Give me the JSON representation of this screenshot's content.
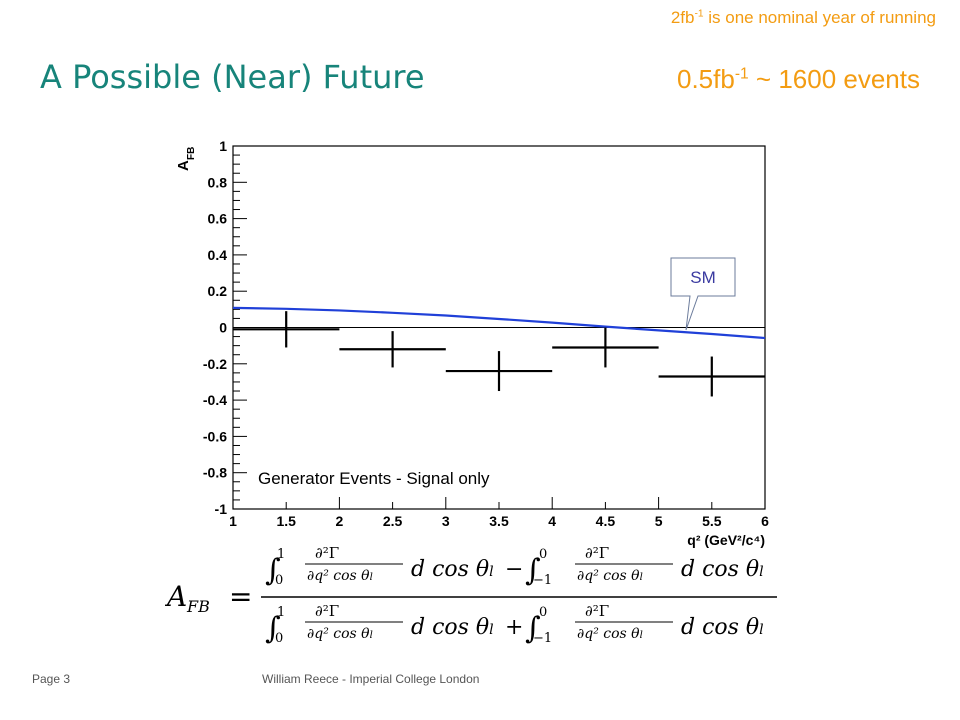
{
  "slide": {
    "title": "A Possible (Near) Future",
    "top_note_main": "2fb",
    "top_note_sup": "-1",
    "top_note_rest": " is one nominal year of running",
    "events_main": "0.5fb",
    "events_sup": "-1",
    "events_rest": " ~ 1600 events",
    "footer_page": "Page 3",
    "footer_author": "William Reece - Imperial College London",
    "formula_lhs": "A",
    "formula_lhs_sub": "FB"
  },
  "chart_data": {
    "type": "scatter",
    "ylabel": "A",
    "ylabel_sub": "FB",
    "xlabel": "q² (GeV²/c⁴)",
    "xlim": [
      1,
      6
    ],
    "ylim": [
      -1,
      1
    ],
    "x_ticks": [
      "1",
      "1.5",
      "2",
      "2.5",
      "3",
      "3.5",
      "4",
      "4.5",
      "5",
      "5.5",
      "6"
    ],
    "y_ticks": [
      "-1",
      "-0.8",
      "-0.6",
      "-0.4",
      "-0.2",
      "0",
      "0.2",
      "0.4",
      "0.6",
      "0.8",
      "1"
    ],
    "annotation": "Generator Events - Signal only",
    "callout": "SM",
    "series": [
      {
        "kind": "points",
        "color": "#000000",
        "points": [
          {
            "x": 1.5,
            "y": -0.01,
            "xerr": 0.5,
            "yerr": 0.1
          },
          {
            "x": 2.5,
            "y": -0.12,
            "xerr": 0.5,
            "yerr": 0.1
          },
          {
            "x": 3.5,
            "y": -0.24,
            "xerr": 0.5,
            "yerr": 0.11
          },
          {
            "x": 4.5,
            "y": -0.11,
            "xerr": 0.5,
            "yerr": 0.11
          },
          {
            "x": 5.5,
            "y": -0.27,
            "xerr": 0.5,
            "yerr": 0.11
          }
        ]
      },
      {
        "name": "SM",
        "kind": "curve",
        "color": "#2040d8",
        "x": [
          1,
          1.5,
          2,
          2.5,
          3,
          3.5,
          4,
          4.5,
          5,
          5.5,
          6
        ],
        "y": [
          0.108,
          0.103,
          0.094,
          0.081,
          0.066,
          0.047,
          0.027,
          0.005,
          -0.016,
          -0.036,
          -0.058
        ]
      }
    ]
  }
}
